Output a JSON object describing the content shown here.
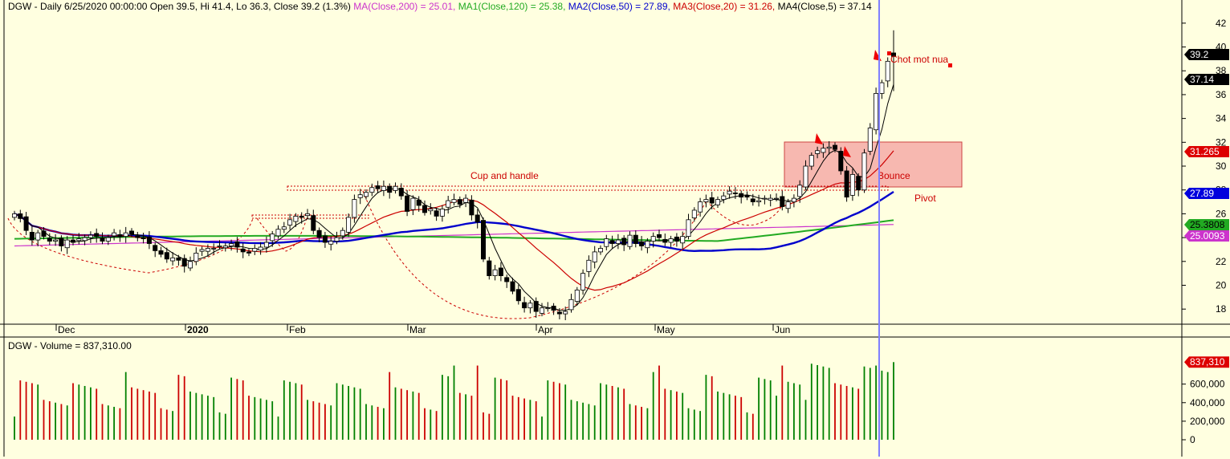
{
  "header": {
    "ticker": "DGW",
    "line": "DGW - Daily 6/25/2020 00:00:00 Open 39.5, Hi 41.4, Lo 36.3, Close 39.2 (1.3%)",
    "ma200": "MA(Close,200) = 25.01,",
    "ma120": "MA1(Close,120) = 25.38,",
    "ma50": "MA2(Close,50) = 27.89,",
    "ma20": "MA3(Close,20) = 31.26,",
    "ma5": "MA4(Close,5) = 37.14"
  },
  "volume_header": "DGW - Volume = 837,310.00",
  "annotations": {
    "cup_handle": "Cup and handle",
    "bounce": "Bounce",
    "pivot": "Pivot",
    "chot": "Chot mot nua"
  },
  "axis_tags": {
    "close": "39.2",
    "ma5": "37.14",
    "ma20": "31.265",
    "ma50": "27.89",
    "ma120": "25.3808",
    "ma200": "25.0093",
    "volume": "837,310"
  },
  "colors": {
    "background": "#ffffe0",
    "up_volume": "#008000",
    "down_volume": "#cc0000",
    "ma200": "#cc33cc",
    "ma120": "#22aa22",
    "ma50": "#0000cc",
    "ma20": "#cc0000",
    "ma5": "#000000",
    "zone": "#f4a0a0",
    "cursor": "#8080ff"
  },
  "chart_data": [
    {
      "type": "candlestick",
      "title": "DGW - Daily",
      "date_labels": [
        "Dec",
        "2020",
        "Feb",
        "Mar",
        "Apr",
        "May",
        "Jun"
      ],
      "y_ticks": [
        18,
        20,
        22,
        24,
        26,
        28,
        30,
        32,
        34,
        36,
        38,
        40,
        42
      ],
      "ylim": [
        16.8,
        43
      ],
      "last_bar": {
        "date": "6/25/2020",
        "open": 39.5,
        "high": 41.4,
        "low": 36.3,
        "close": 39.2,
        "change_pct": 1.3
      },
      "close": [
        26.0,
        25.6,
        24.6,
        23.8,
        24.4,
        24.1,
        23.7,
        23.8,
        23.3,
        23.8,
        23.6,
        23.9,
        24.0,
        24.2,
        24.1,
        23.7,
        24.0,
        24.4,
        24.1,
        24.4,
        24.3,
        24.0,
        23.9,
        23.5,
        22.9,
        22.6,
        22.2,
        22.3,
        22.1,
        21.6,
        22.0,
        22.7,
        23.0,
        23.1,
        23.1,
        23.3,
        23.3,
        23.5,
        23.2,
        22.8,
        22.7,
        23.1,
        23.2,
        23.6,
        24.3,
        24.7,
        24.9,
        25.5,
        25.8,
        25.7,
        26.0,
        24.6,
        24.0,
        23.6,
        23.7,
        24.0,
        24.6,
        25.7,
        27.2,
        27.6,
        27.8,
        28.2,
        28.1,
        28.3,
        27.8,
        28.3,
        27.5,
        26.2,
        27.3,
        26.7,
        26.1,
        26.4,
        25.8,
        26.4,
        27.1,
        27.2,
        26.8,
        27.3,
        25.9,
        25.3,
        22.2,
        20.8,
        21.3,
        20.8,
        20.3,
        19.5,
        18.7,
        18.1,
        18.5,
        17.8,
        18.1,
        18.1,
        17.9,
        17.6,
        17.8,
        18.8,
        19.6,
        21.0,
        22.1,
        22.8,
        23.1,
        23.9,
        23.5,
        23.8,
        23.4,
        24.2,
        23.5,
        23.3,
        23.7,
        24.1,
        24.0,
        23.6,
        23.9,
        23.7,
        24.1,
        25.5,
        26.3,
        27.0,
        27.2,
        26.9,
        27.2,
        27.5,
        27.9,
        27.7,
        27.4,
        27.4,
        27.0,
        27.1,
        27.3,
        27.3,
        27.3,
        26.6,
        27.0,
        27.3,
        28.4,
        30.0,
        30.9,
        31.3,
        31.5,
        31.6,
        31.4,
        29.6,
        27.4,
        29.3,
        28.0,
        31.1,
        33.2,
        36.1,
        37.0,
        38.8,
        39.2
      ]
    },
    {
      "type": "bar",
      "title": "DGW - Volume",
      "y_ticks": [
        0,
        200000,
        400000,
        600000
      ],
      "tick_labels": [
        "0",
        "200,000",
        "400,000",
        "600,000"
      ],
      "last_value": 837310
    }
  ]
}
